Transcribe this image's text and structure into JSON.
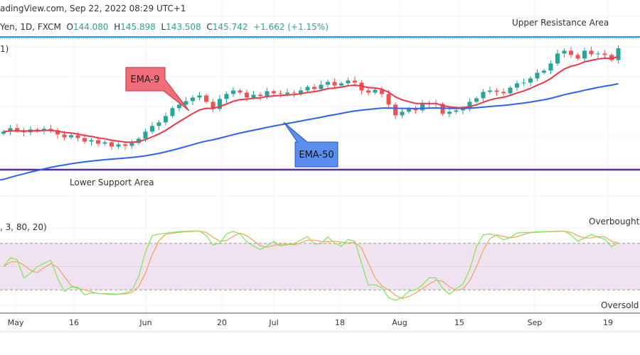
{
  "header": {
    "source": "adingView.com, Sep 22, 2022 08:29 UTC+1",
    "symbol": "Yen, 1D, FXCM",
    "open_label": "O",
    "open": "144.080",
    "high_label": "H",
    "high": "145.898",
    "low_label": "L",
    "low": "143.508",
    "close_label": "C",
    "close": "145.742",
    "change": "+1.662 (+1.15%)",
    "indicator_stub": "1)"
  },
  "annotations": {
    "upper_resistance": "Upper Resistance Area",
    "lower_support": "Lower Support Area",
    "ema9_label": "EMA-9",
    "ema50_label": "EMA-50"
  },
  "colors": {
    "up": "#26a69a",
    "down": "#ef5350",
    "ema9": "#f23645",
    "ema50": "#2962ff",
    "resistance": "#2196f3",
    "support": "#5b2a9e",
    "stoch_k": "#7ee84f",
    "stoch_d": "#f7a15a",
    "band": "#efe2f1"
  },
  "stochastic": {
    "params": ", 3, 80, 20)",
    "overbought_label": "Overbought",
    "oversold_label": "Oversold",
    "upper": 80,
    "lower": 20
  },
  "chart_data": {
    "type": "candlestick",
    "x_ticks": [
      "May",
      "16",
      "Jun",
      "20",
      "Jul",
      "18",
      "Aug",
      "15",
      "Sep",
      "19"
    ],
    "closes": [
      134.0,
      134.5,
      134.2,
      133.9,
      134.3,
      134.1,
      134.4,
      134.2,
      133.6,
      133.2,
      133.5,
      133.1,
      132.6,
      132.8,
      132.3,
      132.5,
      131.9,
      132.2,
      132.0,
      132.4,
      133.0,
      134.0,
      134.8,
      135.3,
      136.2,
      137.3,
      137.8,
      138.3,
      138.8,
      139.1,
      138.2,
      137.2,
      138.6,
      139.3,
      139.8,
      139.5,
      138.8,
      139.2,
      139.0,
      139.7,
      139.4,
      139.3,
      139.5,
      139.4,
      139.8,
      140.3,
      140.0,
      140.6,
      141.0,
      140.5,
      140.8,
      141.2,
      140.9,
      139.8,
      139.5,
      139.9,
      139.3,
      137.8,
      136.3,
      136.8,
      137.2,
      137.0,
      137.9,
      138.0,
      137.9,
      136.5,
      136.8,
      137.0,
      137.3,
      138.2,
      138.7,
      139.6,
      139.8,
      139.6,
      139.4,
      140.2,
      140.8,
      140.9,
      141.5,
      142.3,
      142.6,
      143.6,
      145.0,
      145.4,
      144.8,
      144.3,
      145.4,
      144.9,
      145.0,
      144.8,
      144.08,
      145.742
    ],
    "resistance_level": 145.9,
    "support_level": 128.6
  }
}
